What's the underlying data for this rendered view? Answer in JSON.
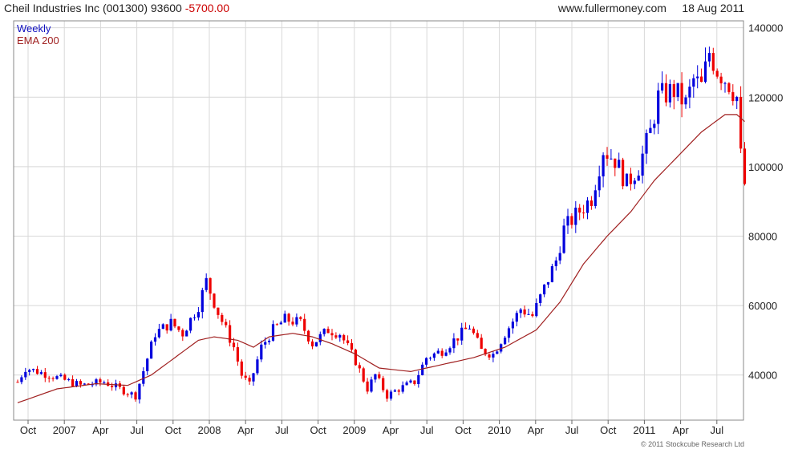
{
  "header": {
    "title": "Cheil Industries Inc (001300)",
    "price": "93600",
    "change": "-5700.00",
    "site": "www.fullermoney.com",
    "date": "18 Aug 2011"
  },
  "legend": {
    "weekly": "Weekly",
    "ema": "EMA 200"
  },
  "copyright": "© 2011 Stockcube Research Ltd",
  "colors": {
    "up": "#0000dd",
    "down": "#ee0000",
    "ema": "#a02020",
    "grid": "#d8d8d8"
  },
  "chart_data": {
    "type": "candlestick",
    "title": "Cheil Industries Inc (001300)",
    "interval": "Weekly",
    "x_ticks": [
      "Oct",
      "2007",
      "Apr",
      "Jul",
      "Oct",
      "2008",
      "Apr",
      "Jul",
      "Oct",
      "2009",
      "Apr",
      "Jul",
      "Oct",
      "2010",
      "Apr",
      "Jul",
      "Oct",
      "2011",
      "Apr",
      "Jul"
    ],
    "y_ticks": [
      "40000",
      "60000",
      "80000",
      "100000",
      "120000",
      "140000"
    ],
    "ylim": [
      27000,
      142000
    ],
    "grid": true,
    "anchors": [
      [
        0,
        38000
      ],
      [
        2,
        42000
      ],
      [
        8,
        40000
      ],
      [
        16,
        37000
      ],
      [
        22,
        38000
      ],
      [
        26,
        36000
      ],
      [
        30,
        34000
      ],
      [
        35,
        52000
      ],
      [
        39,
        55000
      ],
      [
        42,
        52000
      ],
      [
        46,
        60000
      ],
      [
        48,
        67000
      ],
      [
        51,
        58000
      ],
      [
        53,
        53000
      ],
      [
        55,
        48000
      ],
      [
        57,
        40000
      ],
      [
        59,
        37000
      ],
      [
        62,
        48000
      ],
      [
        65,
        53000
      ],
      [
        68,
        56000
      ],
      [
        72,
        55000
      ],
      [
        75,
        49000
      ],
      [
        79,
        53000
      ],
      [
        82,
        52000
      ],
      [
        86,
        44000
      ],
      [
        89,
        36000
      ],
      [
        91,
        40000
      ],
      [
        94,
        34000
      ],
      [
        97,
        36000
      ],
      [
        101,
        38000
      ],
      [
        104,
        45000
      ],
      [
        108,
        47000
      ],
      [
        112,
        51000
      ],
      [
        115,
        54000
      ],
      [
        118,
        47000
      ],
      [
        121,
        46000
      ],
      [
        124,
        52000
      ],
      [
        128,
        59000
      ],
      [
        131,
        57000
      ],
      [
        134,
        65000
      ],
      [
        137,
        73000
      ],
      [
        139,
        82000
      ],
      [
        142,
        86000
      ],
      [
        146,
        91000
      ],
      [
        149,
        105000
      ],
      [
        152,
        102000
      ],
      [
        155,
        95000
      ],
      [
        158,
        100000
      ],
      [
        161,
        110000
      ],
      [
        163,
        120000
      ],
      [
        167,
        122000
      ],
      [
        170,
        118000
      ],
      [
        172,
        125000
      ],
      [
        174,
        123000
      ],
      [
        176,
        133000
      ],
      [
        178,
        128000
      ],
      [
        181,
        124000
      ],
      [
        183,
        120000
      ],
      [
        184,
        103000
      ],
      [
        185,
        95000
      ]
    ],
    "ema_anchors": [
      [
        0,
        32000
      ],
      [
        10,
        36000
      ],
      [
        20,
        37500
      ],
      [
        28,
        37000
      ],
      [
        34,
        40000
      ],
      [
        40,
        45000
      ],
      [
        46,
        50000
      ],
      [
        50,
        51000
      ],
      [
        56,
        50000
      ],
      [
        60,
        48000
      ],
      [
        64,
        51000
      ],
      [
        70,
        52000
      ],
      [
        75,
        51000
      ],
      [
        80,
        49000
      ],
      [
        86,
        46000
      ],
      [
        92,
        42000
      ],
      [
        100,
        41000
      ],
      [
        108,
        43000
      ],
      [
        116,
        45000
      ],
      [
        124,
        48000
      ],
      [
        132,
        53000
      ],
      [
        138,
        61000
      ],
      [
        144,
        72000
      ],
      [
        150,
        80000
      ],
      [
        156,
        87000
      ],
      [
        162,
        96000
      ],
      [
        168,
        103000
      ],
      [
        174,
        110000
      ],
      [
        180,
        115000
      ],
      [
        183,
        115000
      ],
      [
        185,
        113000
      ]
    ],
    "series": [
      {
        "name": "Weekly",
        "kind": "candlestick"
      },
      {
        "name": "EMA 200",
        "kind": "line"
      }
    ]
  }
}
